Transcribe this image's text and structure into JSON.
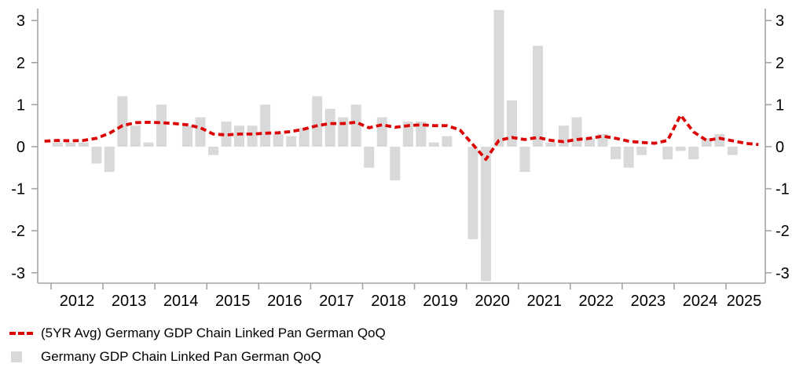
{
  "chart_data": {
    "type": "bar",
    "title": "",
    "xlabel": "",
    "ylabel": "",
    "ylim": [
      -3.3,
      3.3
    ],
    "grid": false,
    "legend_position": "bottom-left",
    "axes_style": "mirrored y-axis left and right, ticks outside, no top border",
    "yticks": [
      -3,
      -2,
      -1,
      0,
      1,
      2,
      3
    ],
    "ytick_labels": [
      "-3",
      "-2",
      "-1",
      "0",
      "1",
      "2",
      "3"
    ],
    "year_tick_labels": [
      "2012",
      "2013",
      "2014",
      "2015",
      "2016",
      "2017",
      "2018",
      "2019",
      "2020",
      "2021",
      "2022",
      "2023",
      "2024",
      "2025"
    ],
    "bar_series": {
      "name": "Germany GDP Chain Linked Pan German QoQ",
      "color": "#d9d9d9",
      "quarters": [
        "2012Q1",
        "2012Q2",
        "2012Q3",
        "2012Q4",
        "2013Q1",
        "2013Q2",
        "2013Q3",
        "2013Q4",
        "2014Q1",
        "2014Q2",
        "2014Q3",
        "2014Q4",
        "2015Q1",
        "2015Q2",
        "2015Q3",
        "2015Q4",
        "2016Q1",
        "2016Q2",
        "2016Q3",
        "2016Q4",
        "2017Q1",
        "2017Q2",
        "2017Q3",
        "2017Q4",
        "2018Q1",
        "2018Q2",
        "2018Q3",
        "2018Q4",
        "2019Q1",
        "2019Q2",
        "2019Q3",
        "2019Q4",
        "2020Q1",
        "2020Q2",
        "2020Q3",
        "2020Q4",
        "2021Q1",
        "2021Q2",
        "2021Q3",
        "2021Q4",
        "2022Q1",
        "2022Q2",
        "2022Q3",
        "2022Q4",
        "2023Q1",
        "2023Q2",
        "2023Q3",
        "2023Q4",
        "2024Q1",
        "2024Q2",
        "2024Q3",
        "2024Q4",
        "2025Q1",
        "2025Q2"
      ],
      "values": [
        0.1,
        0.1,
        0.1,
        -0.4,
        -0.6,
        1.2,
        0.5,
        0.1,
        1.0,
        0.0,
        0.5,
        0.7,
        -0.2,
        0.6,
        0.5,
        0.5,
        1.0,
        0.3,
        0.25,
        0.45,
        1.2,
        0.9,
        0.7,
        1.0,
        -0.5,
        0.7,
        -0.8,
        0.6,
        0.6,
        0.1,
        0.25,
        0.0,
        -2.2,
        -3.2,
        3.25,
        1.1,
        -0.6,
        2.4,
        0.1,
        0.5,
        0.7,
        0.2,
        0.3,
        -0.3,
        -0.5,
        -0.2,
        0.0,
        -0.3,
        -0.1,
        -0.3,
        0.2,
        0.3,
        -0.2,
        0.0
      ]
    },
    "line_series": {
      "name": "(5YR Avg) Germany GDP Chain Linked Pan German QoQ",
      "color": "#dd0000",
      "style": "dashed",
      "quarters": [
        "2011Q4",
        "2012Q1",
        "2012Q2",
        "2012Q3",
        "2012Q4",
        "2013Q1",
        "2013Q2",
        "2013Q3",
        "2013Q4",
        "2014Q1",
        "2014Q2",
        "2014Q3",
        "2014Q4",
        "2015Q1",
        "2015Q2",
        "2015Q3",
        "2015Q4",
        "2016Q1",
        "2016Q2",
        "2016Q3",
        "2016Q4",
        "2017Q1",
        "2017Q2",
        "2017Q3",
        "2017Q4",
        "2018Q1",
        "2018Q2",
        "2018Q3",
        "2018Q4",
        "2019Q1",
        "2019Q2",
        "2019Q3",
        "2019Q4",
        "2020Q1",
        "2020Q2",
        "2020Q3",
        "2020Q4",
        "2021Q1",
        "2021Q2",
        "2021Q3",
        "2021Q4",
        "2022Q1",
        "2022Q2",
        "2022Q3",
        "2022Q4",
        "2023Q1",
        "2023Q2",
        "2023Q3",
        "2023Q4",
        "2024Q1",
        "2024Q2",
        "2024Q3",
        "2024Q4",
        "2025Q1",
        "2025Q2",
        "2025Q3"
      ],
      "values": [
        0.13,
        0.15,
        0.14,
        0.15,
        0.2,
        0.32,
        0.5,
        0.57,
        0.58,
        0.57,
        0.55,
        0.52,
        0.45,
        0.3,
        0.28,
        0.3,
        0.3,
        0.32,
        0.33,
        0.36,
        0.42,
        0.5,
        0.55,
        0.55,
        0.58,
        0.45,
        0.52,
        0.46,
        0.5,
        0.52,
        0.5,
        0.5,
        0.4,
        0.05,
        -0.3,
        0.15,
        0.22,
        0.17,
        0.22,
        0.15,
        0.12,
        0.17,
        0.2,
        0.25,
        0.2,
        0.13,
        0.1,
        0.08,
        0.15,
        0.75,
        0.35,
        0.15,
        0.2,
        0.14,
        0.08,
        0.05
      ]
    }
  },
  "legend": {
    "items": [
      {
        "swatch": "red-dashed-line",
        "label": "(5YR Avg) Germany GDP Chain Linked Pan German QoQ"
      },
      {
        "swatch": "gray-square",
        "label": "Germany GDP Chain Linked Pan German QoQ"
      }
    ]
  },
  "colors": {
    "bar": "#d9d9d9",
    "line": "#dd0000",
    "axis": "#a3a3a3",
    "text": "#000000",
    "background": "#ffffff"
  }
}
